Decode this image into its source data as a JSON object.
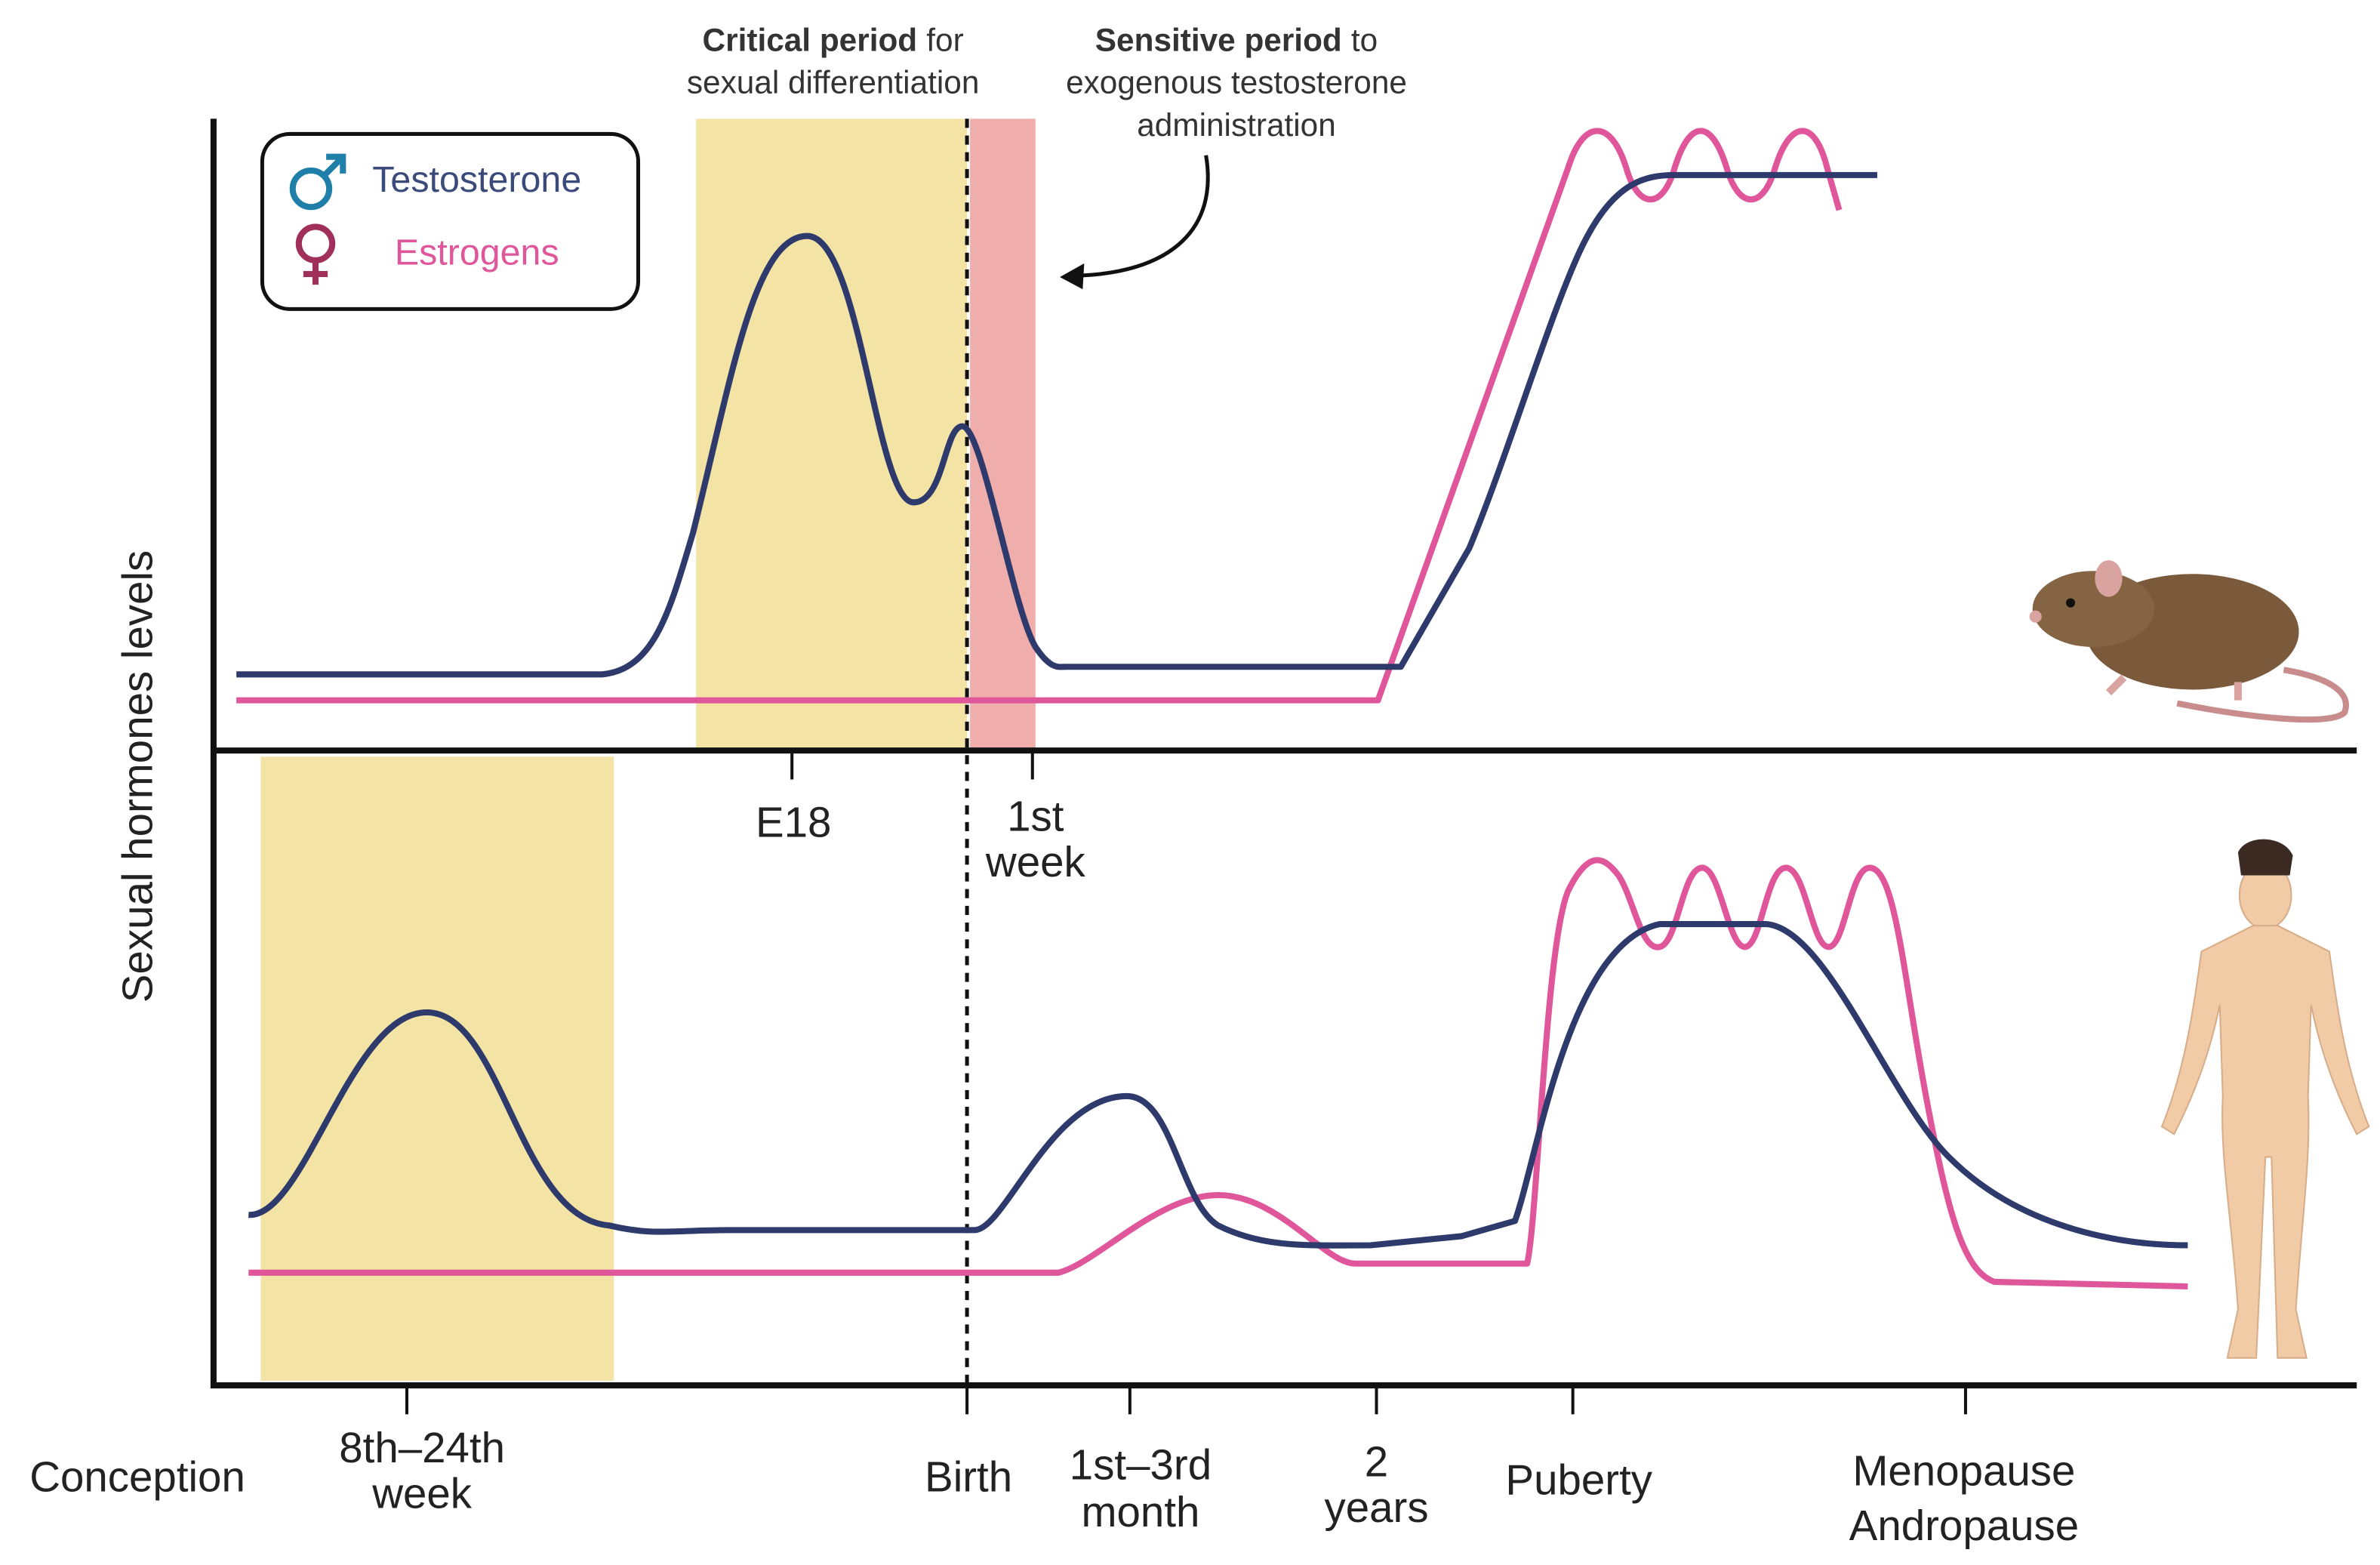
{
  "y_axis_label": "Sexual hormones levels",
  "legend": [
    "Testosterone",
    "Estrogens"
  ],
  "annotations": {
    "critical_period": {
      "bold": "Critical period",
      "rest": "for",
      "line2": "sexual differentiation"
    },
    "sensitive_period": {
      "bold": "Sensitive period",
      "rest": "to",
      "line2": "exogenous testosterone",
      "line3": "administration"
    }
  },
  "mouse_ticks": [
    [
      "E18"
    ],
    [
      "1st",
      "week"
    ]
  ],
  "human_ticks": [
    [
      "Conception"
    ],
    [
      "8th–24th",
      "week"
    ],
    [
      "Birth"
    ],
    [
      "1st–3rd",
      "month"
    ],
    [
      "2",
      "years"
    ],
    [
      "Puberty"
    ],
    [
      "Menopause",
      "Andropause"
    ]
  ]
}
